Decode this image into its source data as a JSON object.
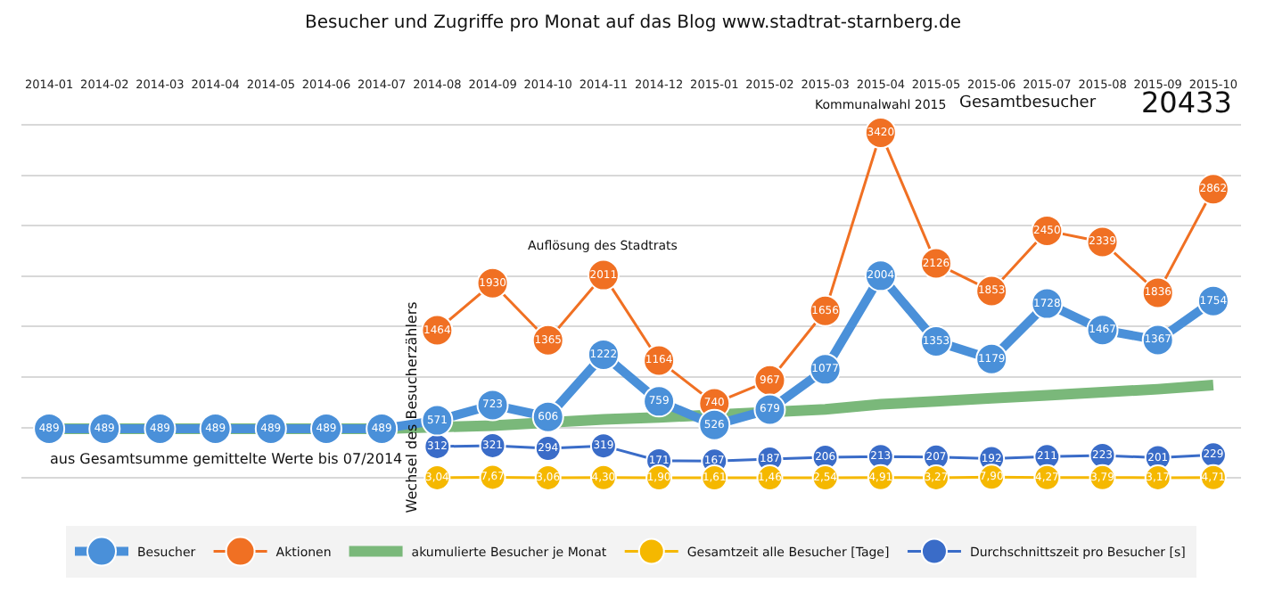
{
  "chart_data": {
    "type": "line",
    "title": "Besucher und Zugriffe pro Monat auf das Blog www.stadtrat-starnberg.de",
    "categories": [
      "2014-01",
      "2014-02",
      "2014-03",
      "2014-04",
      "2014-05",
      "2014-06",
      "2014-07",
      "2014-08",
      "2014-09",
      "2014-10",
      "2014-11",
      "2014-12",
      "2015-01",
      "2015-02",
      "2015-03",
      "2015-04",
      "2015-05",
      "2015-06",
      "2015-07",
      "2015-08",
      "2015-09",
      "2015-10"
    ],
    "series": [
      {
        "name": "Besucher",
        "color": "#4a90d9",
        "marker": "circle",
        "values": [
          489,
          489,
          489,
          489,
          489,
          489,
          489,
          571,
          723,
          606,
          1222,
          759,
          526,
          679,
          1077,
          2004,
          1353,
          1179,
          1728,
          1467,
          1367,
          1754
        ],
        "value_labels": [
          "489",
          "489",
          "489",
          "489",
          "489",
          "489",
          "489",
          "571",
          "723",
          "606",
          "1222",
          "759",
          "526",
          "679",
          "1077",
          "2004",
          "1353",
          "1179",
          "1728",
          "1467",
          "1367",
          "1754"
        ]
      },
      {
        "name": "Aktionen",
        "color": "#f07023",
        "marker": "circle",
        "values": [
          null,
          null,
          null,
          null,
          null,
          null,
          null,
          1464,
          1930,
          1365,
          2011,
          1164,
          740,
          967,
          1656,
          3420,
          2126,
          1853,
          2450,
          2339,
          1836,
          2862
        ],
        "value_labels": [
          null,
          null,
          null,
          null,
          null,
          null,
          null,
          "1464",
          "1930",
          "1365",
          "2011",
          "1164",
          "740",
          "967",
          "1656",
          "3420",
          "2126",
          "1853",
          "2450",
          "2339",
          "1836",
          "2862"
        ]
      },
      {
        "name": "akumulierte Besucher je Monat",
        "color": "#7ab87a",
        "marker": "none",
        "values": [
          489,
          489,
          489,
          489,
          489,
          489,
          489,
          null,
          520,
          null,
          580,
          600,
          null,
          null,
          680,
          730,
          760,
          790,
          820,
          850,
          880,
          920
        ]
      },
      {
        "name": "Gesamtzeit alle Besucher [Tage]",
        "color": "#f5b800",
        "marker": "circle",
        "values": [
          null,
          null,
          null,
          null,
          null,
          null,
          null,
          3.04,
          7.67,
          3.06,
          4.3,
          1.9,
          1.61,
          1.46,
          2.54,
          4.91,
          3.27,
          7.9,
          4.27,
          3.79,
          3.17,
          4.71
        ],
        "value_labels": [
          null,
          null,
          null,
          null,
          null,
          null,
          null,
          "3,04",
          "7,67",
          "3,06",
          "4,30",
          "1,90",
          "1,61",
          "1,46",
          "2,54",
          "4,91",
          "3,27",
          "7,90",
          "4,27",
          "3,79",
          "3,17",
          "4,71"
        ]
      },
      {
        "name": "Durchschnittszeit pro Besucher [s]",
        "color": "#3a6cc8",
        "marker": "circle",
        "values": [
          null,
          null,
          null,
          null,
          null,
          null,
          null,
          312,
          321,
          294,
          319,
          171,
          167,
          187,
          206,
          213,
          207,
          192,
          211,
          223,
          201,
          229
        ],
        "value_labels": [
          null,
          null,
          null,
          null,
          null,
          null,
          null,
          "312",
          "321",
          "294",
          "319",
          "171",
          "167",
          "187",
          "206",
          "213",
          "207",
          "192",
          "211",
          "223",
          "201",
          "229"
        ]
      }
    ],
    "yticks": [
      {
        "value": 0,
        "label": null
      },
      {
        "value": 500,
        "label": null
      },
      {
        "value": 1000,
        "label": null
      },
      {
        "value": 1500,
        "label": null
      },
      {
        "value": 2000,
        "label": null
      },
      {
        "value": 2500,
        "label": null
      },
      {
        "value": 3000,
        "label": null
      },
      {
        "value": 3500,
        "label": null
      }
    ],
    "tick_labels": "x",
    "grid": "y",
    "legend": "bottom",
    "annotations": [
      {
        "text": "Auflösung des Stadtrats",
        "x": "2014-11",
        "y": 2011
      },
      {
        "text": "Kommunalwahl 2015",
        "x": "2015-04",
        "y": 3420
      },
      "Gesamtbesucher",
      "20433",
      "Wechsel des Besucherzählers",
      "aus Gesamtsumme gemittelte Werte bis 07/2014"
    ]
  }
}
